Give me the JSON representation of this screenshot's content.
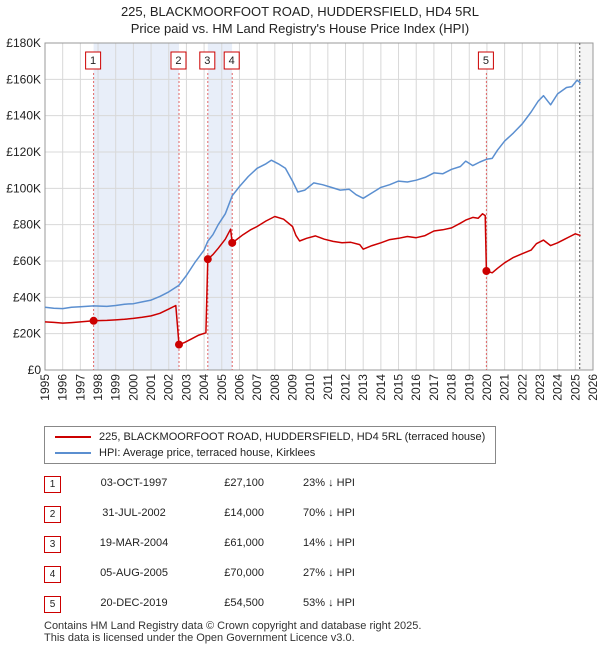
{
  "title_line1": "225, BLACKMOORFOOT ROAD, HUDDERSFIELD, HD4 5RL",
  "title_line2": "Price paid vs. HM Land Registry's House Price Index (HPI)",
  "chart_data": {
    "type": "line",
    "x_range": [
      1995,
      2026
    ],
    "ylim": [
      0,
      180000
    ],
    "y_ticks": [
      {
        "value": 0,
        "label": "£0"
      },
      {
        "value": 20000,
        "label": "£20K"
      },
      {
        "value": 40000,
        "label": "£40K"
      },
      {
        "value": 60000,
        "label": "£60K"
      },
      {
        "value": 80000,
        "label": "£80K"
      },
      {
        "value": 100000,
        "label": "£100K"
      },
      {
        "value": 120000,
        "label": "£120K"
      },
      {
        "value": 140000,
        "label": "£140K"
      },
      {
        "value": 160000,
        "label": "£160K"
      },
      {
        "value": 180000,
        "label": "£180K"
      }
    ],
    "x_ticks": [
      "1995",
      "1996",
      "1997",
      "1998",
      "1999",
      "2000",
      "2001",
      "2002",
      "2003",
      "2004",
      "2005",
      "2006",
      "2007",
      "2008",
      "2009",
      "2010",
      "2011",
      "2012",
      "2013",
      "2014",
      "2015",
      "2016",
      "2017",
      "2018",
      "2019",
      "2020",
      "2021",
      "2022",
      "2023",
      "2024",
      "2025",
      "2026"
    ],
    "series": [
      {
        "name": "225, BLACKMOORFOOT ROAD, HUDDERSFIELD, HD4 5RL (terraced house)",
        "color": "#cc0000",
        "points": [
          [
            1995.0,
            26500
          ],
          [
            1995.5,
            26200
          ],
          [
            1996.0,
            25800
          ],
          [
            1996.5,
            26100
          ],
          [
            1997.0,
            26500
          ],
          [
            1997.75,
            27100
          ],
          [
            1998.5,
            27300
          ],
          [
            1999.0,
            27600
          ],
          [
            1999.5,
            27900
          ],
          [
            2000.0,
            28400
          ],
          [
            2000.5,
            29000
          ],
          [
            2001.0,
            29800
          ],
          [
            2001.5,
            31200
          ],
          [
            2002.0,
            33500
          ],
          [
            2002.4,
            35500
          ],
          [
            2002.58,
            14000
          ],
          [
            2002.9,
            15200
          ],
          [
            2003.3,
            17200
          ],
          [
            2003.7,
            19200
          ],
          [
            2004.1,
            20500
          ],
          [
            2004.21,
            61000
          ],
          [
            2004.5,
            63500
          ],
          [
            2004.8,
            67000
          ],
          [
            2005.2,
            72000
          ],
          [
            2005.5,
            77500
          ],
          [
            2005.59,
            70000
          ],
          [
            2005.8,
            71500
          ],
          [
            2006.2,
            74500
          ],
          [
            2006.6,
            77000
          ],
          [
            2007.0,
            79000
          ],
          [
            2007.5,
            82000
          ],
          [
            2008.0,
            84500
          ],
          [
            2008.5,
            83000
          ],
          [
            2009.0,
            79000
          ],
          [
            2009.2,
            74000
          ],
          [
            2009.4,
            71000
          ],
          [
            2009.8,
            72500
          ],
          [
            2010.3,
            73800
          ],
          [
            2010.8,
            72000
          ],
          [
            2011.3,
            70800
          ],
          [
            2011.8,
            70000
          ],
          [
            2012.3,
            70300
          ],
          [
            2012.8,
            69000
          ],
          [
            2013.0,
            66500
          ],
          [
            2013.5,
            68500
          ],
          [
            2014.0,
            70000
          ],
          [
            2014.5,
            71800
          ],
          [
            2015.0,
            72500
          ],
          [
            2015.5,
            73500
          ],
          [
            2016.0,
            72800
          ],
          [
            2016.5,
            74000
          ],
          [
            2017.0,
            76500
          ],
          [
            2017.5,
            77200
          ],
          [
            2018.0,
            78200
          ],
          [
            2018.5,
            80800
          ],
          [
            2018.8,
            82500
          ],
          [
            2019.2,
            84000
          ],
          [
            2019.5,
            83500
          ],
          [
            2019.75,
            86000
          ],
          [
            2019.9,
            85000
          ],
          [
            2019.97,
            54500
          ],
          [
            2020.3,
            53500
          ],
          [
            2020.6,
            56000
          ],
          [
            2021.0,
            59000
          ],
          [
            2021.5,
            62000
          ],
          [
            2022.0,
            64000
          ],
          [
            2022.5,
            66000
          ],
          [
            2022.8,
            69500
          ],
          [
            2023.2,
            71500
          ],
          [
            2023.6,
            68500
          ],
          [
            2024.0,
            70000
          ],
          [
            2024.4,
            72000
          ],
          [
            2024.7,
            73500
          ],
          [
            2025.0,
            75000
          ],
          [
            2025.3,
            74000
          ]
        ]
      },
      {
        "name": "HPI: Average price, terraced house, Kirklees",
        "color": "#5b8fd0",
        "points": [
          [
            1995.0,
            34500
          ],
          [
            1995.5,
            34000
          ],
          [
            1996.0,
            33800
          ],
          [
            1996.5,
            34500
          ],
          [
            1997.0,
            34800
          ],
          [
            1997.75,
            35300
          ],
          [
            1998.5,
            35000
          ],
          [
            1999.0,
            35500
          ],
          [
            1999.5,
            36200
          ],
          [
            2000.0,
            36500
          ],
          [
            2000.5,
            37500
          ],
          [
            2001.0,
            38500
          ],
          [
            2001.5,
            40500
          ],
          [
            2002.0,
            43000
          ],
          [
            2002.58,
            46700
          ],
          [
            2003.0,
            52000
          ],
          [
            2003.5,
            59500
          ],
          [
            2004.0,
            66000
          ],
          [
            2004.21,
            70900
          ],
          [
            2004.5,
            74500
          ],
          [
            2004.8,
            80000
          ],
          [
            2005.2,
            86000
          ],
          [
            2005.59,
            95900
          ],
          [
            2006.0,
            101000
          ],
          [
            2006.5,
            106500
          ],
          [
            2007.0,
            111000
          ],
          [
            2007.5,
            113500
          ],
          [
            2007.8,
            115500
          ],
          [
            2008.2,
            113500
          ],
          [
            2008.6,
            111000
          ],
          [
            2009.0,
            104000
          ],
          [
            2009.3,
            98000
          ],
          [
            2009.7,
            99000
          ],
          [
            2010.2,
            103000
          ],
          [
            2010.7,
            102000
          ],
          [
            2011.2,
            100500
          ],
          [
            2011.7,
            99000
          ],
          [
            2012.2,
            99500
          ],
          [
            2012.6,
            96500
          ],
          [
            2013.0,
            94500
          ],
          [
            2013.5,
            97500
          ],
          [
            2014.0,
            100500
          ],
          [
            2014.5,
            102000
          ],
          [
            2015.0,
            104000
          ],
          [
            2015.5,
            103500
          ],
          [
            2016.0,
            104500
          ],
          [
            2016.5,
            106000
          ],
          [
            2017.0,
            108500
          ],
          [
            2017.5,
            108000
          ],
          [
            2018.0,
            110500
          ],
          [
            2018.5,
            112000
          ],
          [
            2018.8,
            115000
          ],
          [
            2019.2,
            112500
          ],
          [
            2019.6,
            114500
          ],
          [
            2019.97,
            116000
          ],
          [
            2020.3,
            116500
          ],
          [
            2020.6,
            121000
          ],
          [
            2021.0,
            126000
          ],
          [
            2021.5,
            130500
          ],
          [
            2022.0,
            135500
          ],
          [
            2022.5,
            142000
          ],
          [
            2022.9,
            148000
          ],
          [
            2023.2,
            151000
          ],
          [
            2023.6,
            146000
          ],
          [
            2024.0,
            152000
          ],
          [
            2024.5,
            155500
          ],
          [
            2024.8,
            156000
          ],
          [
            2025.1,
            159500
          ],
          [
            2025.3,
            158000
          ]
        ]
      }
    ],
    "annotations": [
      {
        "label": "1",
        "x": 1997.75,
        "y": 27100
      },
      {
        "label": "2",
        "x": 2002.58,
        "y": 14000
      },
      {
        "label": "3",
        "x": 2004.21,
        "y": 61000
      },
      {
        "label": "4",
        "x": 2005.59,
        "y": 70000
      },
      {
        "label": "5",
        "x": 2019.97,
        "y": 54500
      }
    ],
    "forecast_from": 2025.25
  },
  "legend": {
    "property_label": "225, BLACKMOORFOOT ROAD, HUDDERSFIELD, HD4 5RL (terraced house)",
    "hpi_label": "HPI: Average price, terraced house, Kirklees"
  },
  "transactions": [
    {
      "num": "1",
      "date": "03-OCT-1997",
      "price": "£27,100",
      "hpi": "23% ↓ HPI"
    },
    {
      "num": "2",
      "date": "31-JUL-2002",
      "price": "£14,000",
      "hpi": "70% ↓ HPI"
    },
    {
      "num": "3",
      "date": "19-MAR-2004",
      "price": "£61,000",
      "hpi": "14% ↓ HPI"
    },
    {
      "num": "4",
      "date": "05-AUG-2005",
      "price": "£70,000",
      "hpi": "27% ↓ HPI"
    },
    {
      "num": "5",
      "date": "20-DEC-2019",
      "price": "£54,500",
      "hpi": "53% ↓ HPI"
    }
  ],
  "footer_line1": "Contains HM Land Registry data © Crown copyright and database right 2025.",
  "footer_line2": "This data is licensed under the Open Government Licence v3.0."
}
